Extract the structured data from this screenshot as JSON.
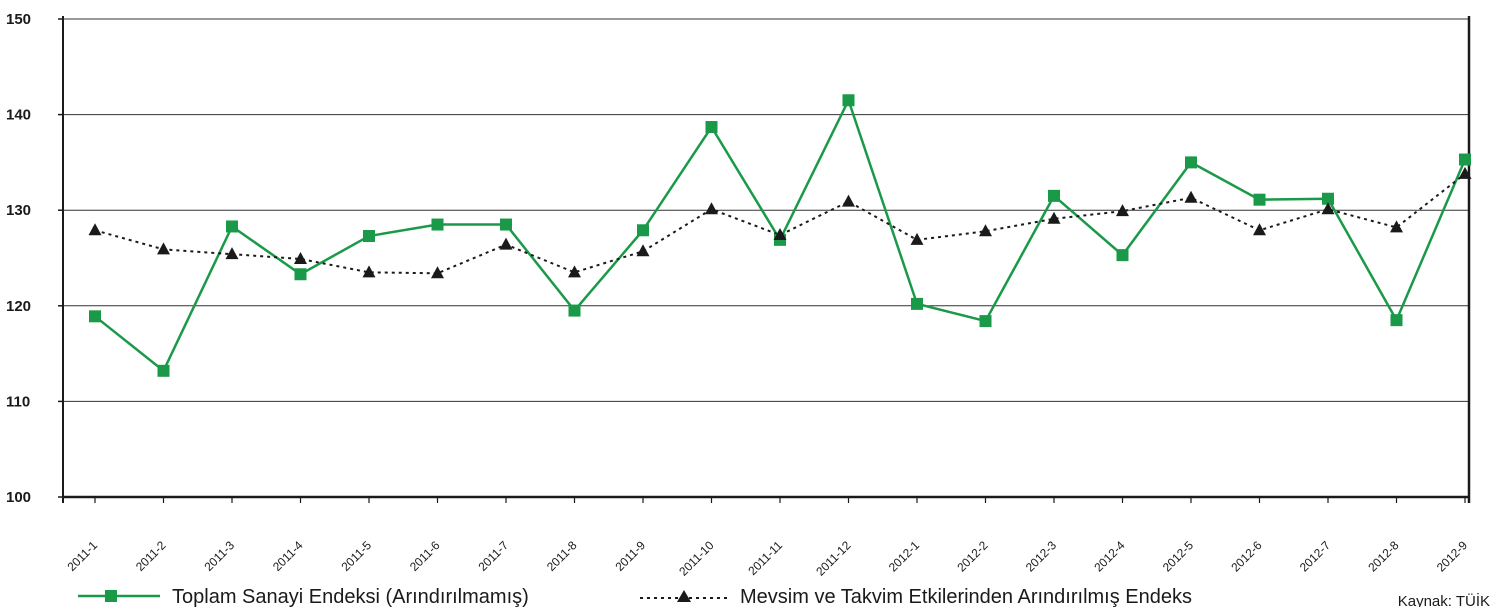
{
  "chart_data": {
    "type": "line",
    "title": "",
    "xlabel": "",
    "ylabel": "",
    "ylim": [
      100,
      150
    ],
    "yticks": [
      100,
      110,
      120,
      130,
      140,
      150
    ],
    "grid": "horizontal",
    "legend_position": "bottom",
    "categories": [
      "2011-1",
      "2011-2",
      "2011-3",
      "2011-4",
      "2011-5",
      "2011-6",
      "2011-7",
      "2011-8",
      "2011-9",
      "2011-10",
      "2011-11",
      "2011-12",
      "2012-1",
      "2012-2",
      "2012-3",
      "2012-4",
      "2012-5",
      "2012-6",
      "2012-7",
      "2012-8",
      "2012-9"
    ],
    "series": [
      {
        "name": "Toplam Sanayi Endeksi (Arındırılmamış)",
        "color": "#1a9a48",
        "marker": "square",
        "line_style": "solid",
        "values": [
          118.9,
          113.2,
          128.3,
          123.3,
          127.3,
          128.5,
          128.5,
          119.5,
          127.9,
          138.7,
          126.9,
          141.5,
          120.2,
          118.4,
          131.5,
          125.3,
          135.0,
          131.1,
          131.2,
          118.5,
          135.3
        ]
      },
      {
        "name": "Mevsim ve Takvim Etkilerinden Arındırılmış Endeks",
        "color": "#1a1a1a",
        "marker": "triangle",
        "line_style": "dotted",
        "values": [
          127.9,
          125.9,
          125.4,
          124.9,
          123.5,
          123.4,
          126.4,
          123.5,
          125.7,
          130.1,
          127.4,
          130.9,
          126.9,
          127.8,
          129.1,
          129.9,
          131.3,
          127.9,
          130.1,
          128.2,
          133.8
        ]
      }
    ]
  },
  "source": "Kaynak: TÜİK"
}
